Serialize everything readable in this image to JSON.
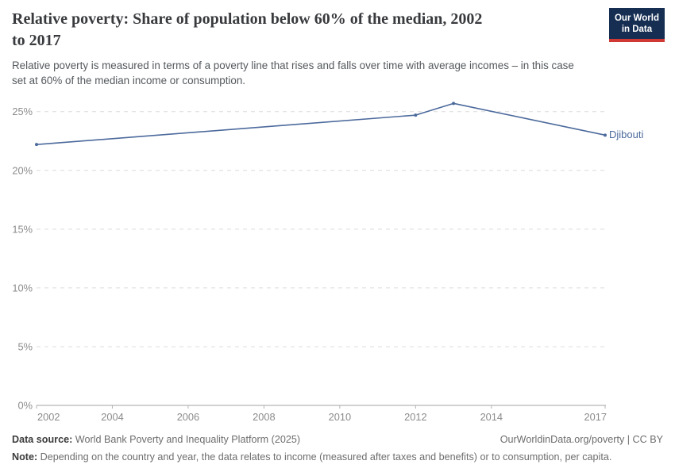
{
  "header": {
    "title": "Relative poverty: Share of population below 60% of the median, 2002\nto 2017",
    "subtitle": "Relative poverty is measured in terms of a poverty line that rises and falls over time with average incomes – in this case\nset at 60% of the median income or consumption.",
    "logo": {
      "line1": "Our World",
      "line2": "in Data"
    }
  },
  "chart_data": {
    "type": "line",
    "title": "Relative poverty: Share of population below 60% of the median, 2002 to 2017",
    "series": [
      {
        "name": "Djibouti",
        "x": [
          2002,
          2012,
          2013,
          2017
        ],
        "values": [
          22.2,
          24.7,
          25.7,
          23.0
        ],
        "color": "#4c6a9c"
      }
    ],
    "entity_label": "Djibouti",
    "x_ticks": [
      2002,
      2004,
      2006,
      2008,
      2010,
      2012,
      2014,
      2017
    ],
    "y_ticks": [
      0,
      5,
      10,
      15,
      20,
      25
    ],
    "y_tick_suffix": "%",
    "xlim": [
      2002,
      2017
    ],
    "ylim": [
      0,
      25
    ],
    "grid": "horizontal-dashed",
    "legend_position": "end-of-line-label",
    "xlabel": "",
    "ylabel": ""
  },
  "footer": {
    "datasource_label": "Data source:",
    "datasource_value": " World Bank Poverty and Inequality Platform (2025)",
    "link": "OurWorldinData.org/poverty | CC BY",
    "note_label": "Note:",
    "note_value": " Depending on the country and year, the data relates to income (measured after taxes and benefits) or to consumption, per capita."
  },
  "colors": {
    "line": "#4c6a9c",
    "entity_label": "#4c6a9c",
    "grid": "#dcdcdc",
    "axis": "#a3a3a3",
    "tick": "#b3b3b3",
    "tick_label": "#8b8b8b",
    "logo_bg": "#152e52",
    "logo_red": "#d13a34"
  }
}
